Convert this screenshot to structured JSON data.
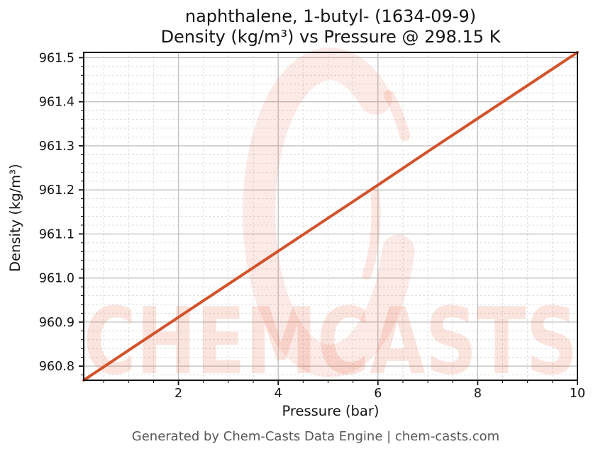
{
  "title": {
    "line1": "naphthalene, 1-butyl- (1634-09-9)",
    "line2": "Density (kg/m³) vs Pressure @ 298.15 K"
  },
  "watermark": {
    "text": "CHEMCASTS",
    "icon": "brush-circle-c-icon",
    "color": "#e8603a"
  },
  "footer": {
    "text": "Generated by Chem-Casts Data Engine | chem-casts.com"
  },
  "chart_data": {
    "type": "line",
    "title": "naphthalene, 1-butyl- (1634-09-9) — Density (kg/m³) vs Pressure @ 298.15 K",
    "xlabel": "Pressure (bar)",
    "ylabel": "Density (kg/m³)",
    "x": [
      0.1,
      1,
      2,
      3,
      4,
      5,
      6,
      7,
      8,
      9,
      10
    ],
    "series": [
      {
        "name": "Density (kg/m³) @ 298.15 K",
        "values": [
          960.768,
          960.836,
          960.911,
          960.986,
          961.061,
          961.136,
          961.211,
          961.287,
          961.362,
          961.437,
          961.512
        ]
      }
    ],
    "xlim": [
      0.1,
      10
    ],
    "ylim": [
      960.768,
      961.512
    ],
    "xticks": [
      2,
      4,
      6,
      8,
      10
    ],
    "xtick_labels": [
      "2",
      "4",
      "6",
      "8",
      "10"
    ],
    "yticks": [
      960.8,
      960.9,
      961.0,
      961.1,
      961.2,
      961.3,
      961.4,
      961.5
    ],
    "ytick_labels": [
      "960.8",
      "960.9",
      "961.0",
      "961.1",
      "961.2",
      "961.3",
      "961.4",
      "961.5"
    ],
    "x_minor_step": 0.5,
    "y_minor_step": 0.02,
    "grid": true,
    "legend": "none",
    "line_color": "#d2532b",
    "line_width": 4
  }
}
